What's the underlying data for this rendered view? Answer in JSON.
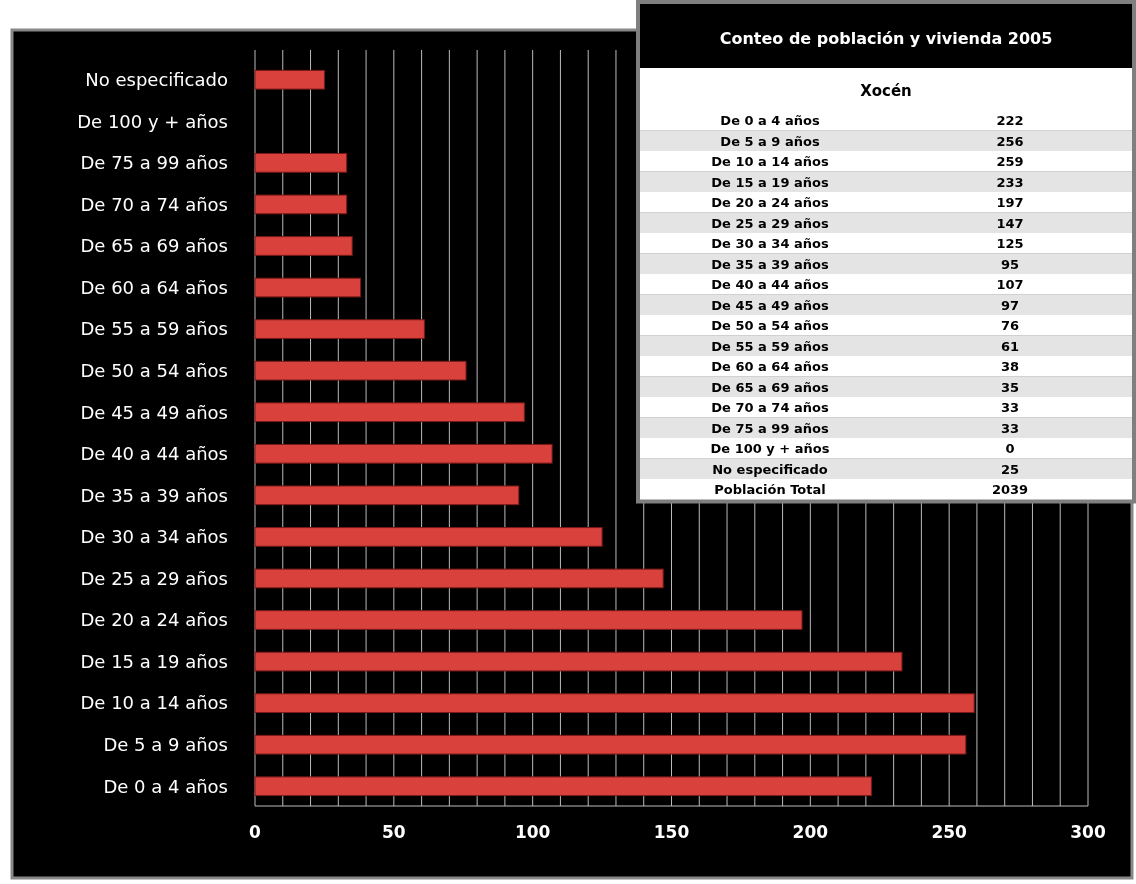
{
  "chart_data": [
    {
      "type": "bar",
      "orientation": "horizontal",
      "categories": [
        "No especificado",
        "De 100 y + años",
        "De 75 a 99 años",
        "De 70 a 74 años",
        "De 65 a 69 años",
        "De 60 a 64 años",
        "De 55 a 59 años",
        "De 50 a 54 años",
        "De 45 a 49 años",
        "De 40 a 44 años",
        "De 35 a 39 años",
        "De 30 a 34 años",
        "De 25 a 29 años",
        "De 20 a 24 años",
        "De 15 a 19 años",
        "De 10 a 14 años",
        "De 5 a 9 años",
        "De 0 a 4 años"
      ],
      "values": [
        25,
        0,
        33,
        33,
        35,
        38,
        61,
        76,
        97,
        107,
        95,
        125,
        147,
        197,
        233,
        259,
        256,
        222
      ],
      "color": "#d9413c",
      "grid": "x",
      "xlim": [
        0,
        300
      ],
      "xticks": [
        0,
        {
          "value": 10,
          "label": null
        },
        {
          "value": 20,
          "label": null
        },
        {
          "value": 30,
          "label": null
        },
        {
          "value": 40,
          "label": null
        },
        50,
        {
          "value": 60,
          "label": null
        },
        {
          "value": 70,
          "label": null
        },
        {
          "value": 80,
          "label": null
        },
        {
          "value": 90,
          "label": null
        },
        100,
        {
          "value": 110,
          "label": null
        },
        {
          "value": 120,
          "label": null
        },
        {
          "value": 130,
          "label": null
        },
        {
          "value": 140,
          "label": null
        },
        150,
        {
          "value": 160,
          "label": null
        },
        {
          "value": 170,
          "label": null
        },
        {
          "value": 180,
          "label": null
        },
        {
          "value": 190,
          "label": null
        },
        200,
        {
          "value": 210,
          "label": null
        },
        {
          "value": 220,
          "label": null
        },
        {
          "value": 230,
          "label": null
        },
        {
          "value": 240,
          "label": null
        },
        250,
        {
          "value": 260,
          "label": null
        },
        {
          "value": 270,
          "label": null
        },
        {
          "value": 280,
          "label": null
        },
        {
          "value": 290,
          "label": null
        },
        300
      ]
    },
    {
      "type": "other",
      "title": "Conteo de población y vivienda 2005",
      "subtitle": "Xocén",
      "categories": [
        "De 0 a 4 años",
        "De 5 a 9 años",
        "De 10 a 14 años",
        "De 15 a 19 años",
        "De 20 a 24 años",
        "De 25 a 29 años",
        "De 30 a 34 años",
        "De 35 a 39 años",
        "De 40 a 44 años",
        "De 45 a 49 años",
        "De 50 a 54 años",
        "De 55 a 59 años",
        "De 60 a 64 años",
        "De 65 a 69 años",
        "De 70 a 74 años",
        "De 75 a 99 años",
        "De 100 y + años",
        "No especificado",
        "Población Total"
      ],
      "values": [
        222,
        256,
        259,
        233,
        197,
        147,
        125,
        95,
        107,
        97,
        76,
        61,
        38,
        35,
        33,
        33,
        0,
        25,
        2039
      ],
      "data_labels": true
    }
  ]
}
